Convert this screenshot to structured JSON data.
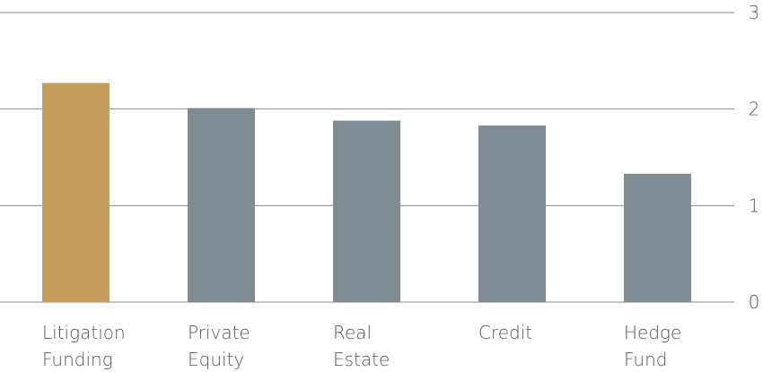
{
  "chart_data": {
    "type": "bar",
    "categories": [
      "Litigation Funding",
      "Private Equity",
      "Real Estate",
      "Credit",
      "Hedge Fund"
    ],
    "values": [
      2.27,
      2.01,
      1.88,
      1.83,
      1.33
    ],
    "colors": [
      "#c4a05a",
      "#7f8c94",
      "#7f8c94",
      "#7f8c94",
      "#7f8c94"
    ],
    "ylim": [
      0,
      3
    ],
    "yticks": [
      0,
      1,
      2,
      3
    ],
    "grid": true,
    "y_axis_side": "right"
  }
}
